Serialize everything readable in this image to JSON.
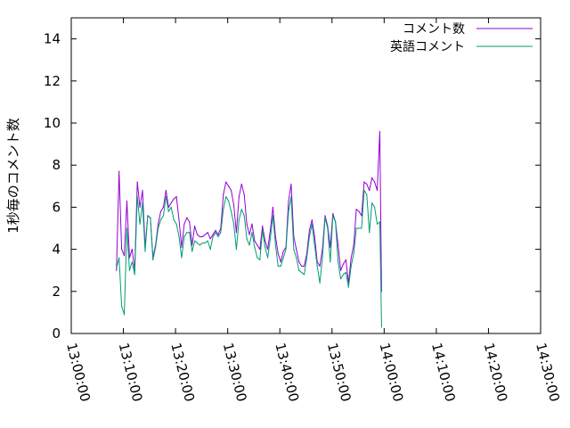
{
  "chart_data": {
    "type": "line",
    "title": "",
    "xlabel": "",
    "ylabel": "1秒毎のコメント数",
    "xlim": [
      "13:00:00",
      "14:30:00"
    ],
    "ylim": [
      0,
      15
    ],
    "x_ticks": [
      "13:00:00",
      "13:10:00",
      "13:20:00",
      "13:30:00",
      "13:40:00",
      "13:50:00",
      "14:00:00",
      "14:10:00",
      "14:20:00",
      "14:30:00"
    ],
    "y_ticks": [
      0,
      2,
      4,
      6,
      8,
      10,
      12,
      14
    ],
    "legend_position": "top-right",
    "grid": false,
    "series": [
      {
        "name": "コメント数",
        "color": "#9400d3",
        "points": [
          [
            "13:08:40",
            3.0
          ],
          [
            "13:09:10",
            7.7
          ],
          [
            "13:09:40",
            4.0
          ],
          [
            "13:10:10",
            3.7
          ],
          [
            "13:10:40",
            6.3
          ],
          [
            "13:11:10",
            3.6
          ],
          [
            "13:11:40",
            4.0
          ],
          [
            "13:12:10",
            3.0
          ],
          [
            "13:12:40",
            7.2
          ],
          [
            "13:13:10",
            6.0
          ],
          [
            "13:13:40",
            6.8
          ],
          [
            "13:14:10",
            4.1
          ],
          [
            "13:14:40",
            5.6
          ],
          [
            "13:15:10",
            5.5
          ],
          [
            "13:15:40",
            3.6
          ],
          [
            "13:16:10",
            4.2
          ],
          [
            "13:16:40",
            5.2
          ],
          [
            "13:17:10",
            5.8
          ],
          [
            "13:17:40",
            6.0
          ],
          [
            "13:18:10",
            6.8
          ],
          [
            "13:18:40",
            6.0
          ],
          [
            "13:19:10",
            6.2
          ],
          [
            "13:19:40",
            6.4
          ],
          [
            "13:20:10",
            6.5
          ],
          [
            "13:20:40",
            5.4
          ],
          [
            "13:21:10",
            4.1
          ],
          [
            "13:21:40",
            5.2
          ],
          [
            "13:22:10",
            5.5
          ],
          [
            "13:22:40",
            5.3
          ],
          [
            "13:23:10",
            4.2
          ],
          [
            "13:23:40",
            5.1
          ],
          [
            "13:24:10",
            4.7
          ],
          [
            "13:24:40",
            4.6
          ],
          [
            "13:25:10",
            4.6
          ],
          [
            "13:25:40",
            4.7
          ],
          [
            "13:26:10",
            4.8
          ],
          [
            "13:26:40",
            4.5
          ],
          [
            "13:27:10",
            4.7
          ],
          [
            "13:27:40",
            4.9
          ],
          [
            "13:28:10",
            4.7
          ],
          [
            "13:28:40",
            5.0
          ],
          [
            "13:29:10",
            6.6
          ],
          [
            "13:29:40",
            7.2
          ],
          [
            "13:30:10",
            7.0
          ],
          [
            "13:30:40",
            6.8
          ],
          [
            "13:31:10",
            6.1
          ],
          [
            "13:31:40",
            4.8
          ],
          [
            "13:32:10",
            6.5
          ],
          [
            "13:32:40",
            7.1
          ],
          [
            "13:33:10",
            6.6
          ],
          [
            "13:33:40",
            5.2
          ],
          [
            "13:34:10",
            4.7
          ],
          [
            "13:34:40",
            5.2
          ],
          [
            "13:35:10",
            4.4
          ],
          [
            "13:35:40",
            4.2
          ],
          [
            "13:36:10",
            4.0
          ],
          [
            "13:36:40",
            5.1
          ],
          [
            "13:37:10",
            4.4
          ],
          [
            "13:37:40",
            4.0
          ],
          [
            "13:38:10",
            4.9
          ],
          [
            "13:38:40",
            6.0
          ],
          [
            "13:39:10",
            4.6
          ],
          [
            "13:39:40",
            3.8
          ],
          [
            "13:40:10",
            3.4
          ],
          [
            "13:40:40",
            3.9
          ],
          [
            "13:41:10",
            4.1
          ],
          [
            "13:41:40",
            6.3
          ],
          [
            "13:42:10",
            7.1
          ],
          [
            "13:42:40",
            4.6
          ],
          [
            "13:43:10",
            4.0
          ],
          [
            "13:43:40",
            3.4
          ],
          [
            "13:44:10",
            3.2
          ],
          [
            "13:44:40",
            3.2
          ],
          [
            "13:45:10",
            3.8
          ],
          [
            "13:45:40",
            4.9
          ],
          [
            "13:46:10",
            5.4
          ],
          [
            "13:46:40",
            4.6
          ],
          [
            "13:47:10",
            3.4
          ],
          [
            "13:47:40",
            3.2
          ],
          [
            "13:48:10",
            4.0
          ],
          [
            "13:48:40",
            5.6
          ],
          [
            "13:49:10",
            5.1
          ],
          [
            "13:49:40",
            4.1
          ],
          [
            "13:50:10",
            5.7
          ],
          [
            "13:50:40",
            5.3
          ],
          [
            "13:51:10",
            4.2
          ],
          [
            "13:51:40",
            3.0
          ],
          [
            "13:52:10",
            3.3
          ],
          [
            "13:52:40",
            3.5
          ],
          [
            "13:53:10",
            2.4
          ],
          [
            "13:53:40",
            3.6
          ],
          [
            "13:54:10",
            4.2
          ],
          [
            "13:54:40",
            5.9
          ],
          [
            "13:55:10",
            5.8
          ],
          [
            "13:55:40",
            5.6
          ],
          [
            "13:56:10",
            7.2
          ],
          [
            "13:56:40",
            7.1
          ],
          [
            "13:57:10",
            6.8
          ],
          [
            "13:57:40",
            7.4
          ],
          [
            "13:58:10",
            7.2
          ],
          [
            "13:58:40",
            6.8
          ],
          [
            "13:59:10",
            9.6
          ],
          [
            "13:59:30",
            2.0
          ]
        ]
      },
      {
        "name": "英語コメント",
        "color": "#009e73",
        "points": [
          [
            "13:08:40",
            3.1
          ],
          [
            "13:09:10",
            3.6
          ],
          [
            "13:09:40",
            1.3
          ],
          [
            "13:10:10",
            0.9
          ],
          [
            "13:10:40",
            5.0
          ],
          [
            "13:11:10",
            3.0
          ],
          [
            "13:11:40",
            3.4
          ],
          [
            "13:12:10",
            2.8
          ],
          [
            "13:12:40",
            6.5
          ],
          [
            "13:13:10",
            5.2
          ],
          [
            "13:13:40",
            6.2
          ],
          [
            "13:14:10",
            3.9
          ],
          [
            "13:14:40",
            5.6
          ],
          [
            "13:15:10",
            5.5
          ],
          [
            "13:15:40",
            3.5
          ],
          [
            "13:16:10",
            4.1
          ],
          [
            "13:16:40",
            5.0
          ],
          [
            "13:17:10",
            5.4
          ],
          [
            "13:17:40",
            5.6
          ],
          [
            "13:18:10",
            6.5
          ],
          [
            "13:18:40",
            5.8
          ],
          [
            "13:19:10",
            6.0
          ],
          [
            "13:19:40",
            5.4
          ],
          [
            "13:20:10",
            5.2
          ],
          [
            "13:20:40",
            4.6
          ],
          [
            "13:21:10",
            3.6
          ],
          [
            "13:21:40",
            4.6
          ],
          [
            "13:22:10",
            4.8
          ],
          [
            "13:22:40",
            4.8
          ],
          [
            "13:23:10",
            3.9
          ],
          [
            "13:23:40",
            4.4
          ],
          [
            "13:24:10",
            4.3
          ],
          [
            "13:24:40",
            4.2
          ],
          [
            "13:25:10",
            4.3
          ],
          [
            "13:25:40",
            4.3
          ],
          [
            "13:26:10",
            4.4
          ],
          [
            "13:26:40",
            4.0
          ],
          [
            "13:27:10",
            4.6
          ],
          [
            "13:27:40",
            4.8
          ],
          [
            "13:28:10",
            4.6
          ],
          [
            "13:28:40",
            4.8
          ],
          [
            "13:29:10",
            5.9
          ],
          [
            "13:29:40",
            6.5
          ],
          [
            "13:30:10",
            6.3
          ],
          [
            "13:30:40",
            5.8
          ],
          [
            "13:31:10",
            5.2
          ],
          [
            "13:31:40",
            4.0
          ],
          [
            "13:32:10",
            5.4
          ],
          [
            "13:32:40",
            5.9
          ],
          [
            "13:33:10",
            5.6
          ],
          [
            "13:33:40",
            4.5
          ],
          [
            "13:34:10",
            4.2
          ],
          [
            "13:34:40",
            4.8
          ],
          [
            "13:35:10",
            4.1
          ],
          [
            "13:35:40",
            3.6
          ],
          [
            "13:36:10",
            3.5
          ],
          [
            "13:36:40",
            4.9
          ],
          [
            "13:37:10",
            4.1
          ],
          [
            "13:37:40",
            3.6
          ],
          [
            "13:38:10",
            4.5
          ],
          [
            "13:38:40",
            5.6
          ],
          [
            "13:39:10",
            4.2
          ],
          [
            "13:39:40",
            3.2
          ],
          [
            "13:40:10",
            3.2
          ],
          [
            "13:40:40",
            3.6
          ],
          [
            "13:41:10",
            4.0
          ],
          [
            "13:41:40",
            5.8
          ],
          [
            "13:42:10",
            6.5
          ],
          [
            "13:42:40",
            4.0
          ],
          [
            "13:43:10",
            3.6
          ],
          [
            "13:43:40",
            3.0
          ],
          [
            "13:44:10",
            2.9
          ],
          [
            "13:44:40",
            2.8
          ],
          [
            "13:45:10",
            3.6
          ],
          [
            "13:45:40",
            4.6
          ],
          [
            "13:46:10",
            5.2
          ],
          [
            "13:46:40",
            4.2
          ],
          [
            "13:47:10",
            3.2
          ],
          [
            "13:47:40",
            2.4
          ],
          [
            "13:48:10",
            3.6
          ],
          [
            "13:48:40",
            5.5
          ],
          [
            "13:49:10",
            5.0
          ],
          [
            "13:49:40",
            3.4
          ],
          [
            "13:50:10",
            5.6
          ],
          [
            "13:50:40",
            5.3
          ],
          [
            "13:51:10",
            3.4
          ],
          [
            "13:51:40",
            2.6
          ],
          [
            "13:52:10",
            2.8
          ],
          [
            "13:52:40",
            2.9
          ],
          [
            "13:53:10",
            2.2
          ],
          [
            "13:53:40",
            3.2
          ],
          [
            "13:54:10",
            3.8
          ],
          [
            "13:54:40",
            5.0
          ],
          [
            "13:55:10",
            5.0
          ],
          [
            "13:55:40",
            5.0
          ],
          [
            "13:56:10",
            6.8
          ],
          [
            "13:56:40",
            6.6
          ],
          [
            "13:57:10",
            4.8
          ],
          [
            "13:57:40",
            6.2
          ],
          [
            "13:58:10",
            6.0
          ],
          [
            "13:58:40",
            5.2
          ],
          [
            "13:59:10",
            5.3
          ],
          [
            "13:59:30",
            0.3
          ]
        ]
      }
    ]
  }
}
